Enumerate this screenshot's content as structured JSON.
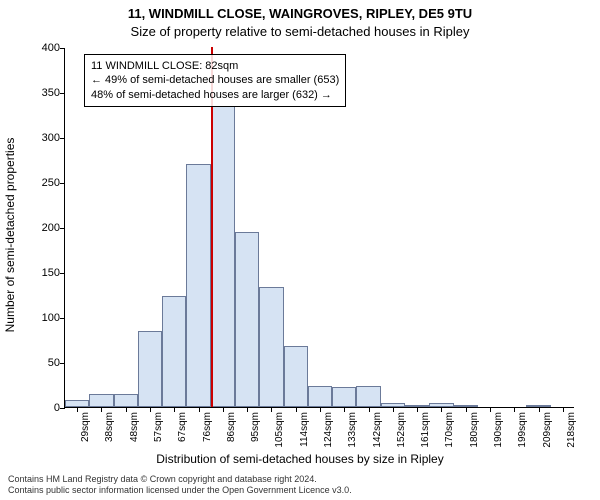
{
  "title_line1": "11, WINDMILL CLOSE, WAINGROVES, RIPLEY, DE5 9TU",
  "title_line2": "Size of property relative to semi-detached houses in Ripley",
  "xlabel": "Distribution of semi-detached houses by size in Ripley",
  "ylabel": "Number of semi-detached properties",
  "annotation": {
    "line1": "11 WINDMILL CLOSE: 82sqm",
    "line2": "← 49% of semi-detached houses are smaller (653)",
    "line3": "48% of semi-detached houses are larger (632) →"
  },
  "footer_line1": "Contains HM Land Registry data © Crown copyright and database right 2024.",
  "footer_line2": "Contains public sector information licensed under the Open Government Licence v3.0.",
  "chart": {
    "type": "histogram",
    "bar_fill": "#d6e3f3",
    "bar_stroke": "#6b7a99",
    "vrule_color": "#cc0000",
    "vrule_x": 82,
    "background": "#ffffff",
    "x_start": 24.5,
    "x_step": 9.5,
    "ylim": [
      0,
      400
    ],
    "ytick_step": 50,
    "bins": [
      {
        "x": 29,
        "count": 8
      },
      {
        "x": 38,
        "count": 15
      },
      {
        "x": 48,
        "count": 14
      },
      {
        "x": 57,
        "count": 85
      },
      {
        "x": 67,
        "count": 123
      },
      {
        "x": 76,
        "count": 270
      },
      {
        "x": 86,
        "count": 335
      },
      {
        "x": 95,
        "count": 195
      },
      {
        "x": 105,
        "count": 133
      },
      {
        "x": 114,
        "count": 68
      },
      {
        "x": 124,
        "count": 23
      },
      {
        "x": 133,
        "count": 22
      },
      {
        "x": 142,
        "count": 23
      },
      {
        "x": 152,
        "count": 5
      },
      {
        "x": 161,
        "count": 2
      },
      {
        "x": 170,
        "count": 4
      },
      {
        "x": 180,
        "count": 1
      },
      {
        "x": 190,
        "count": 0
      },
      {
        "x": 199,
        "count": 0
      },
      {
        "x": 209,
        "count": 1
      },
      {
        "x": 218,
        "count": 0
      }
    ]
  }
}
